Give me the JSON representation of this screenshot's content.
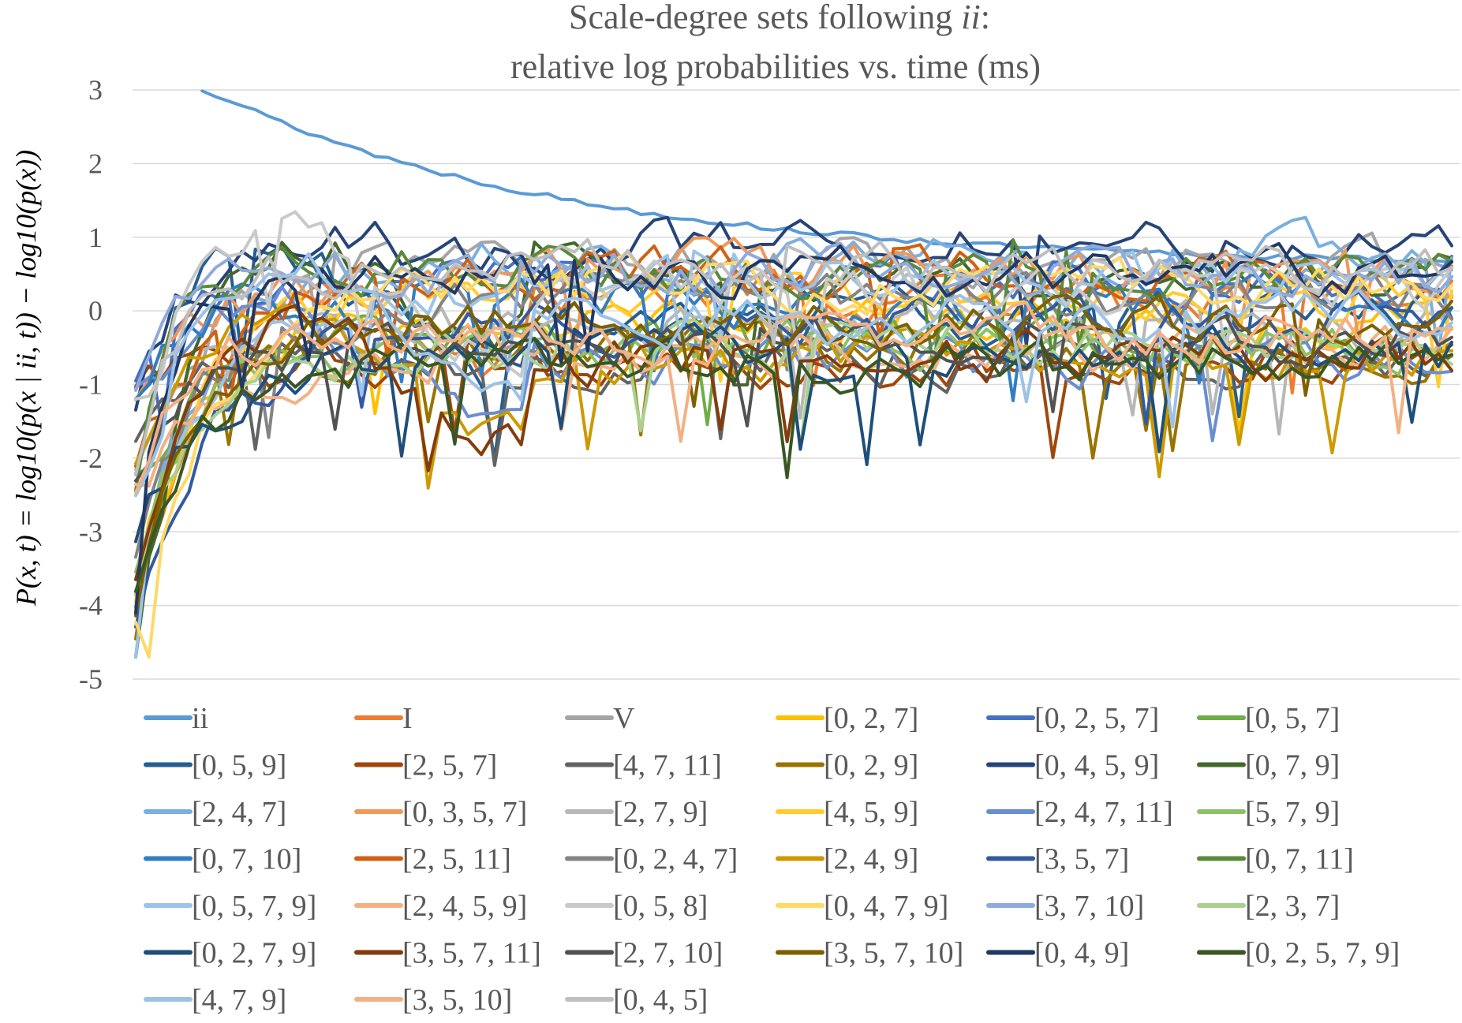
{
  "chart_data": {
    "type": "line",
    "title_line1": "Scale-degree sets following ",
    "title_italic": "ii",
    "title_colon": ":",
    "title_line2": "relative log probabilities vs. time (ms)",
    "ylabel": "P(x, t) = log10(p(x | ii, t)) − log10(p(x))",
    "ylim": [
      -5,
      3
    ],
    "yticks": [
      3,
      2,
      1,
      0,
      -1,
      -2,
      -3,
      -4,
      -5
    ],
    "ytick_labels": [
      "3",
      "2",
      "1",
      "0",
      "-1",
      "-2",
      "-3",
      "-4",
      "-5"
    ],
    "x_points": 100,
    "grid": true,
    "legend_position": "bottom",
    "series": [
      {
        "name": "ii",
        "color": "#5b9bd5"
      },
      {
        "name": "I",
        "color": "#ed7d31"
      },
      {
        "name": "V",
        "color": "#a5a5a5"
      },
      {
        "name": "[0, 2, 7]",
        "color": "#ffc000"
      },
      {
        "name": "[0, 2, 5, 7]",
        "color": "#4472c4"
      },
      {
        "name": "[0, 5, 7]",
        "color": "#70ad47"
      },
      {
        "name": "[0, 5, 9]",
        "color": "#255e91"
      },
      {
        "name": "[2, 5, 7]",
        "color": "#9e480e"
      },
      {
        "name": "[4, 7, 11]",
        "color": "#636363"
      },
      {
        "name": "[0, 2, 9]",
        "color": "#997300"
      },
      {
        "name": "[0, 4, 5, 9]",
        "color": "#264478"
      },
      {
        "name": "[0, 7, 9]",
        "color": "#43682b"
      },
      {
        "name": "[2, 4, 7]",
        "color": "#7cafdd"
      },
      {
        "name": "[0, 3, 5, 7]",
        "color": "#f1975a"
      },
      {
        "name": "[2, 7, 9]",
        "color": "#b7b7b7"
      },
      {
        "name": "[4, 5, 9]",
        "color": "#ffcd33"
      },
      {
        "name": "[2, 4, 7, 11]",
        "color": "#698ed0"
      },
      {
        "name": "[5, 7, 9]",
        "color": "#8cc168"
      },
      {
        "name": "[0, 7, 10]",
        "color": "#327dc2"
      },
      {
        "name": "[2, 5, 11]",
        "color": "#d26012"
      },
      {
        "name": "[0, 2, 4, 7]",
        "color": "#848484"
      },
      {
        "name": "[2, 4, 9]",
        "color": "#cc9a00"
      },
      {
        "name": "[3, 5, 7]",
        "color": "#335aa1"
      },
      {
        "name": "[0, 7, 11]",
        "color": "#5a8a39"
      },
      {
        "name": "[0, 5, 7, 9]",
        "color": "#9dc3e6"
      },
      {
        "name": "[2, 4, 5, 9]",
        "color": "#f4b183"
      },
      {
        "name": "[0, 5, 8]",
        "color": "#c9c9c9"
      },
      {
        "name": "[0, 4, 7, 9]",
        "color": "#ffd966"
      },
      {
        "name": "[3, 7, 10]",
        "color": "#8faadc"
      },
      {
        "name": "[2, 3, 7]",
        "color": "#a9d18e"
      },
      {
        "name": "[0, 2, 7, 9]",
        "color": "#1f4e79"
      },
      {
        "name": "[3, 5, 7, 11]",
        "color": "#843c0c"
      },
      {
        "name": "[2, 7, 10]",
        "color": "#525252"
      },
      {
        "name": "[3, 5, 7, 10]",
        "color": "#7f6000"
      },
      {
        "name": "[0, 4, 9]",
        "color": "#203864"
      },
      {
        "name": "[0, 2, 5, 7, 9]",
        "color": "#385723"
      },
      {
        "name": "[4, 7, 9]",
        "color": "#9cc2e5"
      },
      {
        "name": "[3, 5, 10]",
        "color": "#f4b084"
      },
      {
        "name": "[0, 4, 5]",
        "color": "#bfbfbf"
      }
    ]
  }
}
